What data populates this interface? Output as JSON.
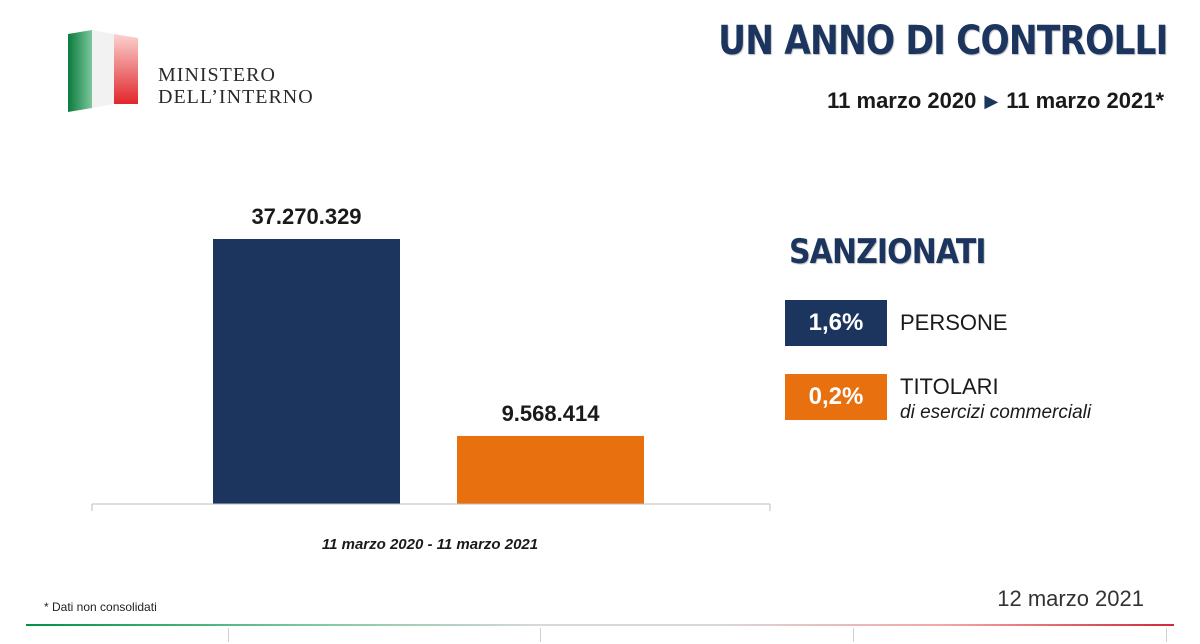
{
  "header": {
    "org_line1": "MINISTERO",
    "org_line2": "DELL’INTERNO",
    "title": "UN ANNO DI CONTROLLI",
    "date_start": "11 marzo 2020",
    "date_end": "11 marzo 2021*"
  },
  "colors": {
    "navy": "#1c355e",
    "orange": "#e8700f",
    "green": "#009246",
    "red": "#ce2b37"
  },
  "chart_data": {
    "type": "bar",
    "title": "",
    "xlabel": "11 marzo 2020 - 11 marzo 2021",
    "ylabel": "",
    "categories": [
      "",
      ""
    ],
    "values": [
      37270329,
      9568414
    ],
    "value_labels": [
      "37.270.329",
      "9.568.414"
    ],
    "ylim": [
      0,
      37270329
    ],
    "grid": false,
    "legend": "none"
  },
  "sanzionati": {
    "title": "SANZIONATI",
    "items": [
      {
        "percent": "1,6%",
        "label": "PERSONE",
        "sublabel": ""
      },
      {
        "percent": "0,2%",
        "label": "TITOLARI",
        "sublabel": "di esercizi commerciali"
      }
    ]
  },
  "footer": {
    "footnote": "* Dati non consolidati",
    "date": "12 marzo 2021"
  }
}
